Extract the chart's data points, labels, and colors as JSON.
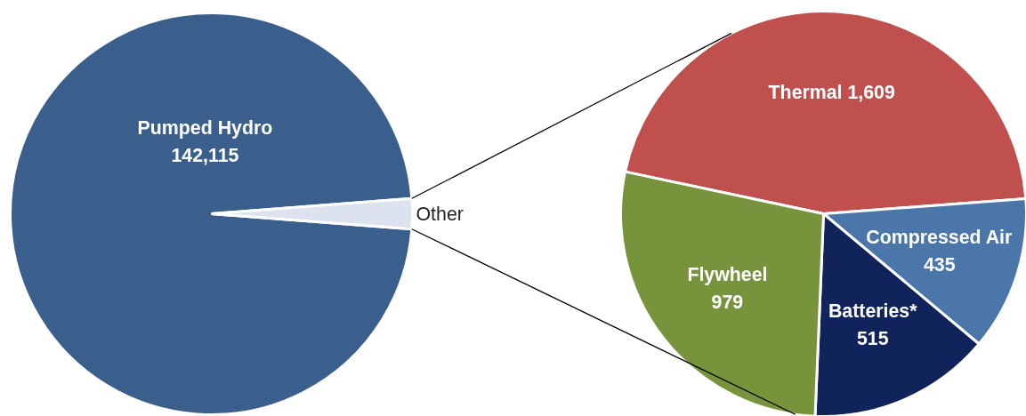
{
  "chart_data": [
    {
      "type": "pie",
      "categories": [
        "Pumped Hydro",
        "Other"
      ],
      "values": [
        142115,
        3538
      ],
      "colors": [
        "#3b5f8d",
        "#dce3ef"
      ],
      "value_labels": [
        "142,115",
        null
      ]
    },
    {
      "type": "pie",
      "categories": [
        "Thermal",
        "Compressed Air",
        "Batteries*",
        "Flywheel"
      ],
      "values": [
        1609,
        435,
        515,
        979
      ],
      "colors": [
        "#c0504d",
        "#4a76a9",
        "#10235a",
        "#77933c"
      ],
      "value_labels": [
        "1,609",
        "435",
        "515",
        "979"
      ]
    }
  ]
}
